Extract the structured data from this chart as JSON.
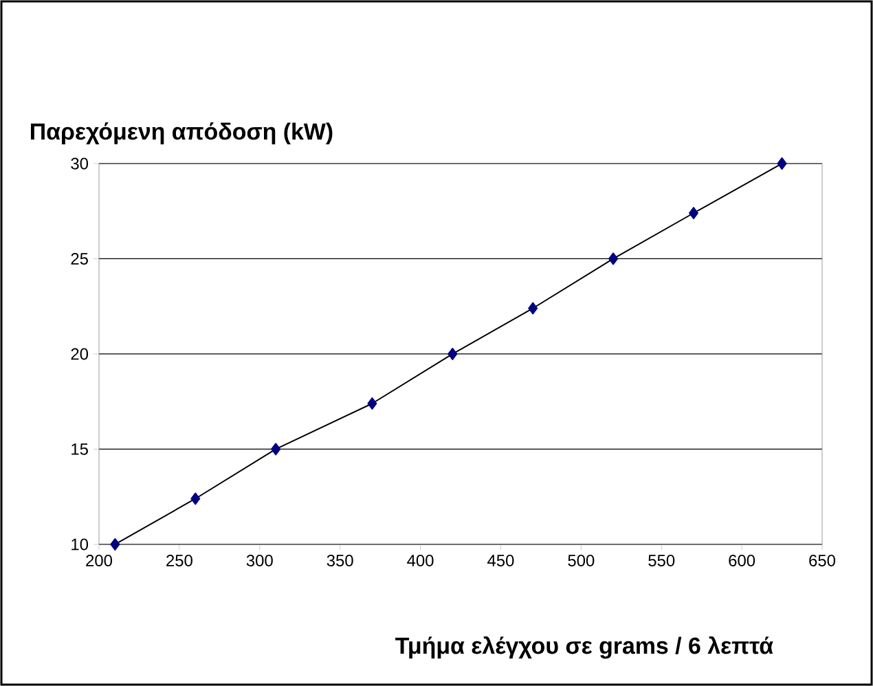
{
  "chart_data": {
    "type": "line",
    "title": "Παρεχόμενη απόδοση (kW)",
    "xlabel": "Τμήμα ελέγχου σε grams / 6 λεπτά",
    "x": [
      210,
      260,
      310,
      370,
      420,
      470,
      520,
      570,
      625
    ],
    "series": [
      {
        "color": "#000080",
        "values": [
          10,
          12.4,
          15,
          17.4,
          20,
          22.4,
          25,
          27.4,
          30
        ]
      }
    ],
    "xlim": [
      200,
      650
    ],
    "xticks": [
      200,
      250,
      300,
      350,
      400,
      450,
      500,
      550,
      600,
      650
    ],
    "ylim": [
      10,
      30
    ],
    "yticks": [
      10,
      15,
      20,
      25,
      30
    ],
    "grid": "y",
    "marker": "diamond",
    "line_style": "solid"
  }
}
